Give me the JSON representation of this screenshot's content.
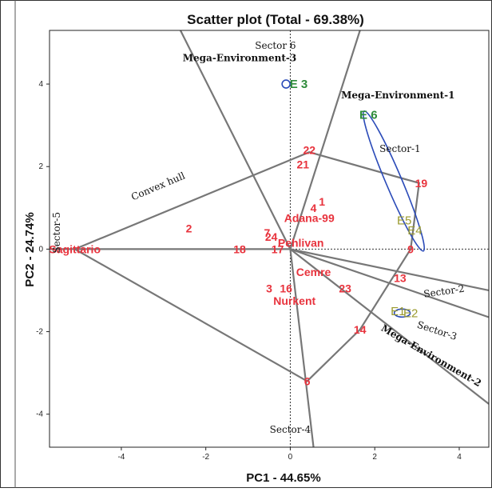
{
  "chart_data": {
    "type": "scatter",
    "title": "Scatter plot (Total - 69.38%)",
    "xlabel": "PC1 - 44.65%",
    "ylabel": "PC2 - 24.74%",
    "xlim": [
      -5.7,
      4.7
    ],
    "ylim": [
      -4.8,
      5.3
    ],
    "xticks": [
      -4,
      -2,
      0,
      2,
      4
    ],
    "yticks": [
      -4,
      -2,
      0,
      2,
      4
    ],
    "genotypes": [
      {
        "label": "Sagittario",
        "x": -5.1,
        "y": 0.0
      },
      {
        "label": "2",
        "x": -2.4,
        "y": 0.5
      },
      {
        "label": "18",
        "x": -1.2,
        "y": 0.0
      },
      {
        "label": "17",
        "x": -0.3,
        "y": 0.0
      },
      {
        "label": "7",
        "x": -0.55,
        "y": 0.4
      },
      {
        "label": "24",
        "x": -0.45,
        "y": 0.3
      },
      {
        "label": "Adana-99",
        "x": 0.45,
        "y": 0.75
      },
      {
        "label": "4",
        "x": 0.55,
        "y": 1.0
      },
      {
        "label": "1",
        "x": 0.75,
        "y": 1.15
      },
      {
        "label": "Pehlivan",
        "x": 0.25,
        "y": 0.15
      },
      {
        "label": "Cemre",
        "x": 0.55,
        "y": -0.55
      },
      {
        "label": "16",
        "x": -0.1,
        "y": -0.95
      },
      {
        "label": "3",
        "x": -0.5,
        "y": -0.95
      },
      {
        "label": "Nurkent",
        "x": 0.1,
        "y": -1.25
      },
      {
        "label": "23",
        "x": 1.3,
        "y": -0.95
      },
      {
        "label": "13",
        "x": 2.6,
        "y": -0.7
      },
      {
        "label": "9",
        "x": 2.85,
        "y": 0.0
      },
      {
        "label": "19",
        "x": 3.1,
        "y": 1.6
      },
      {
        "label": "22",
        "x": 0.45,
        "y": 2.4
      },
      {
        "label": "21",
        "x": 0.3,
        "y": 2.05
      },
      {
        "label": "14",
        "x": 1.65,
        "y": -1.95
      },
      {
        "label": "6",
        "x": 0.4,
        "y": -3.2
      }
    ],
    "environments": [
      {
        "label": "E 3",
        "x": 0.2,
        "y": 4.0
      },
      {
        "label": "E 6",
        "x": 1.85,
        "y": 3.25
      },
      {
        "label": "E5",
        "x": 2.7,
        "y": 0.7
      },
      {
        "label": "E4",
        "x": 2.95,
        "y": 0.45
      },
      {
        "label": "E1",
        "x": 2.55,
        "y": -1.5
      },
      {
        "label": "E2",
        "x": 2.85,
        "y": -1.55
      }
    ],
    "hull": [
      [
        -5.1,
        0.0
      ],
      [
        0.45,
        2.35
      ],
      [
        3.05,
        1.6
      ],
      [
        2.85,
        0.0
      ],
      [
        1.65,
        -1.95
      ],
      [
        0.4,
        -3.2
      ]
    ],
    "sectors": [
      "Sector-1",
      "Sector-2",
      "Sector-3",
      "Sector-4",
      "Sector-5",
      "Sector 6"
    ],
    "annotations": [
      "Convex hull",
      "Mega-Environment-1",
      "Mega-Environment-2",
      "Mega-Environment-3"
    ]
  }
}
